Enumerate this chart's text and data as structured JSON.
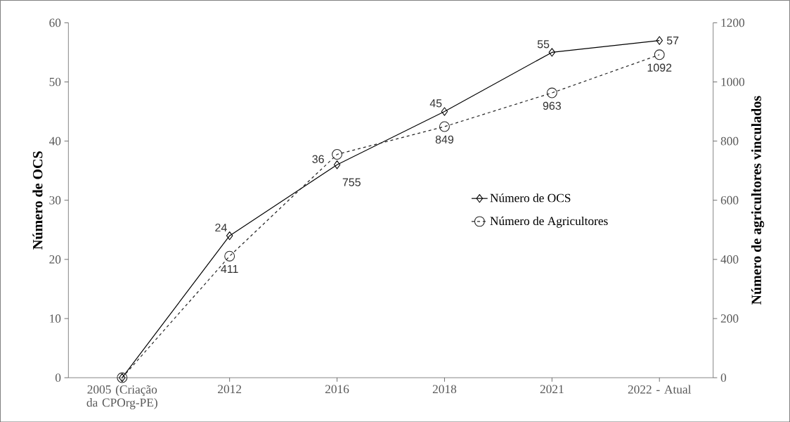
{
  "chart_data": {
    "type": "line",
    "categories": [
      "2005 (Criação da CPOrg-PE)",
      "2012",
      "2016",
      "2018",
      "2021",
      "2022 - Atual"
    ],
    "ylabel": "Número de OCS",
    "y2label": "Número de agricultores vinculados",
    "ylim": [
      0,
      60
    ],
    "yticks": [
      0,
      10,
      20,
      30,
      40,
      50,
      60
    ],
    "y2lim": [
      0,
      1200
    ],
    "y2ticks": [
      0,
      200,
      400,
      600,
      800,
      1000,
      1200
    ],
    "legend": "right",
    "series": [
      {
        "name": "Número de OCS",
        "color": "#000000",
        "marker": "diamond",
        "line_style": "solid",
        "values": [
          0,
          24,
          36,
          45,
          55,
          57
        ],
        "value_labels": [
          null,
          "24",
          "36",
          "45",
          "55",
          "57"
        ]
      },
      {
        "name": "Número de Agricultores",
        "color": "#262626",
        "marker": "circle",
        "line_style": "dashed",
        "axis": "y2",
        "values": [
          0,
          411,
          755,
          849,
          963,
          1092
        ],
        "value_labels": [
          null,
          "411",
          "755",
          "849",
          "963",
          "1092"
        ]
      }
    ]
  }
}
